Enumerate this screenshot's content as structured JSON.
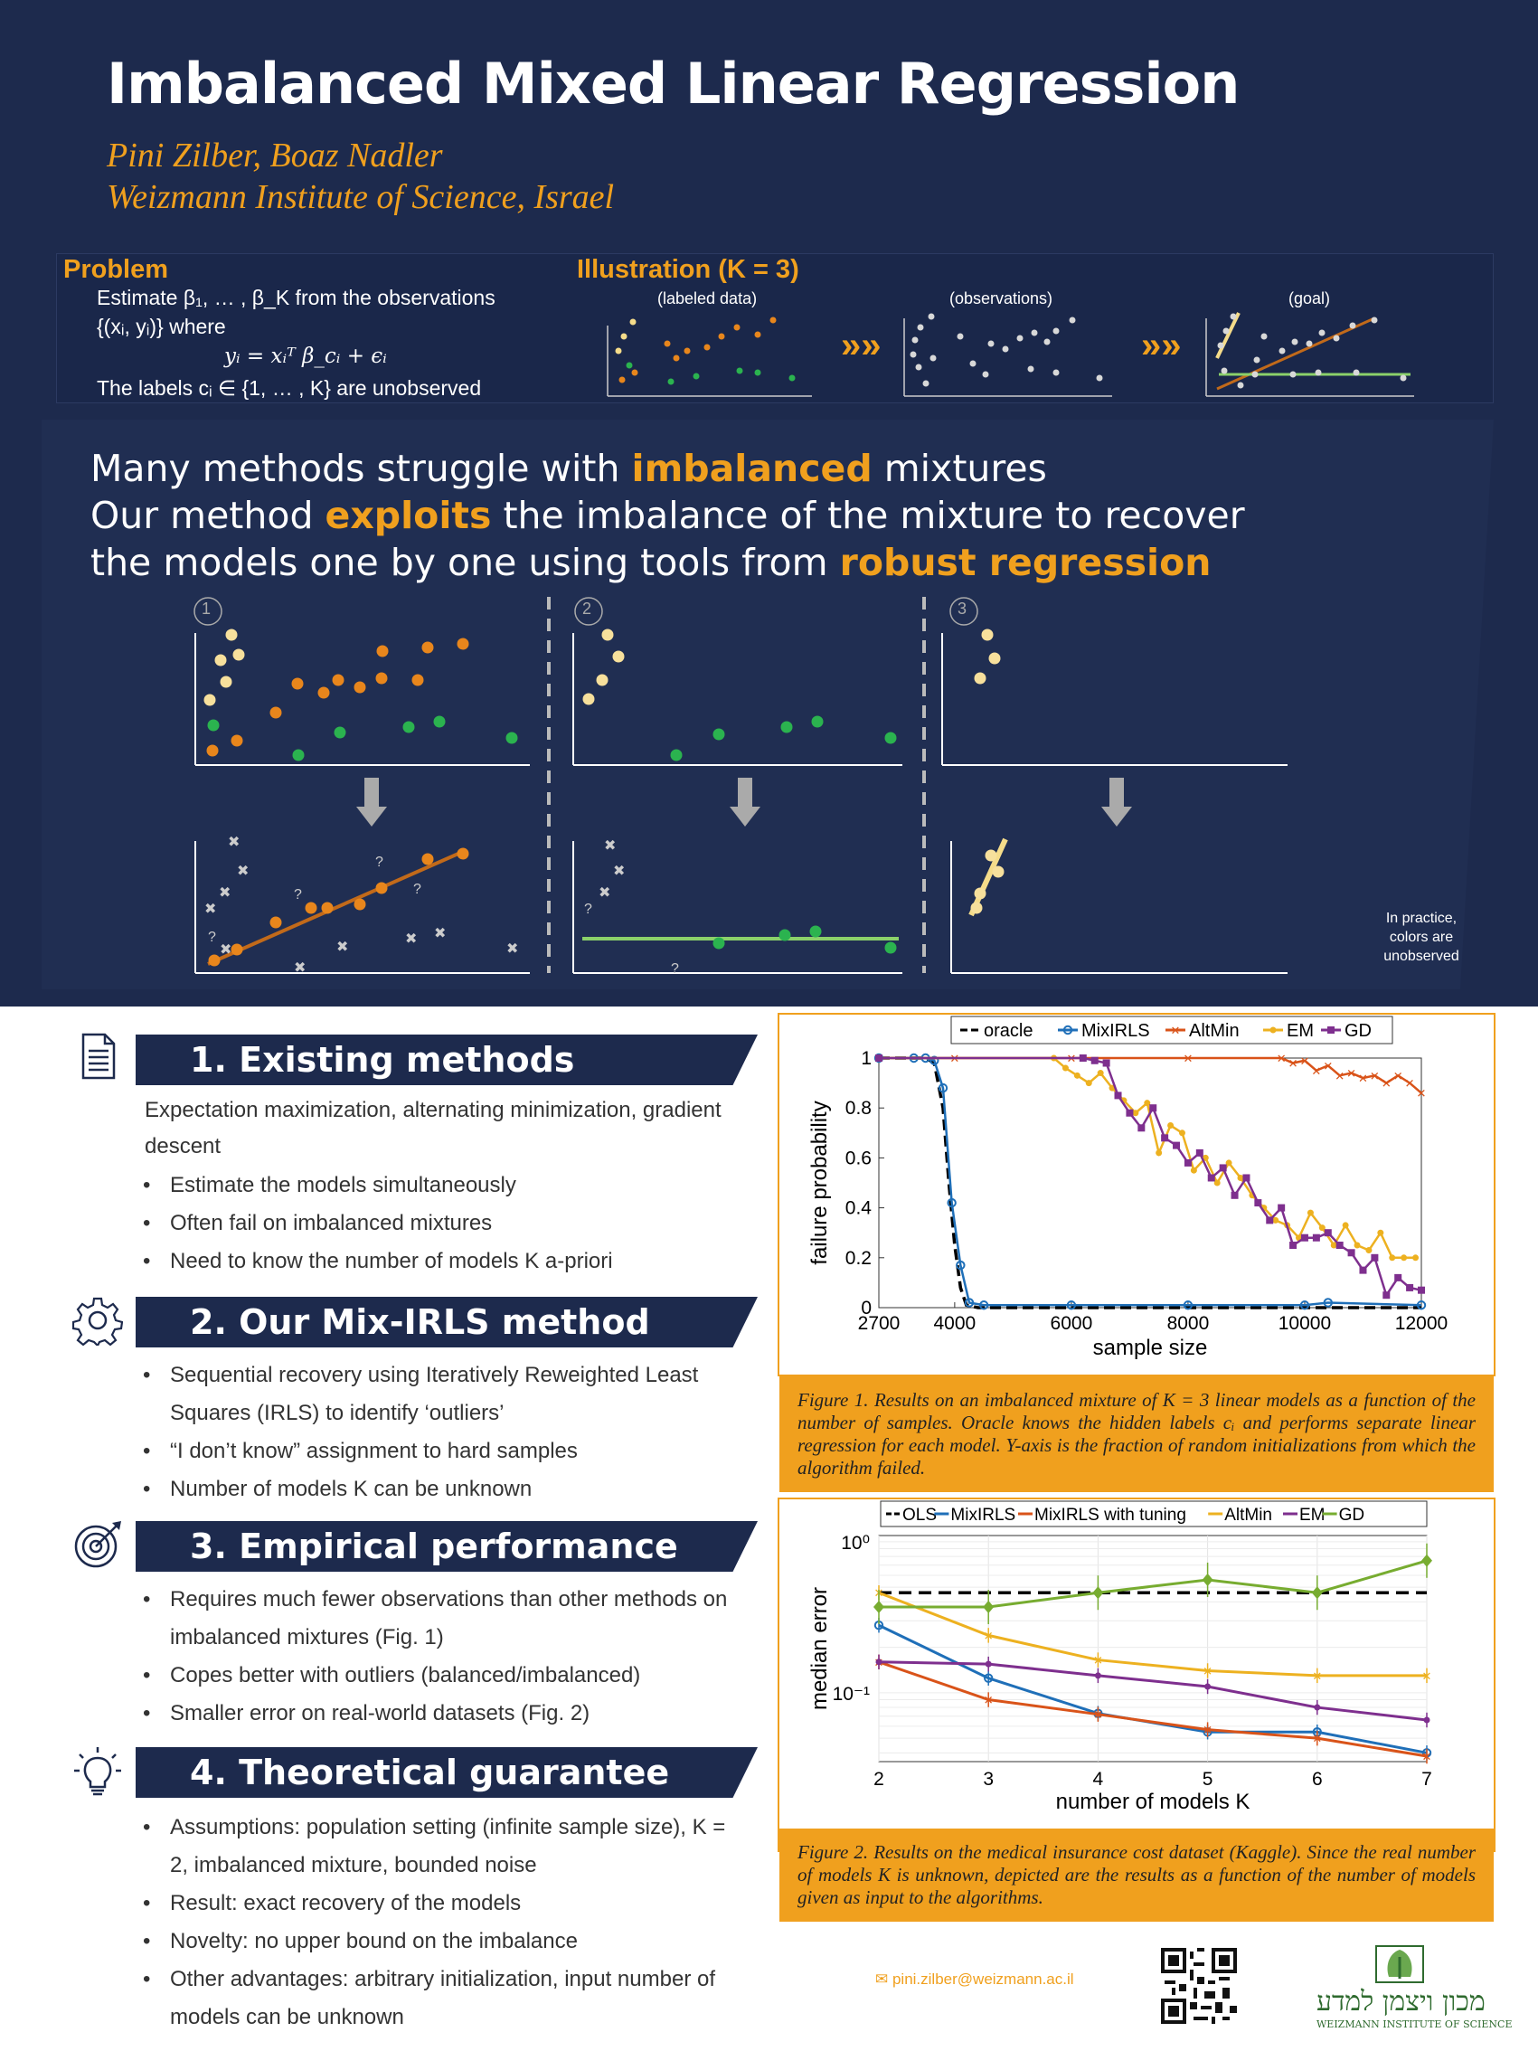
{
  "title": "Imbalanced Mixed Linear Regression",
  "authors": "Pini Zilber,  Boaz Nadler",
  "affiliation": "Weizmann Institute of Science, Israel",
  "problem": {
    "heading": "Problem",
    "line1": "Estimate β₁, … , β_K from the observations",
    "line2": "{(xᵢ, yᵢ)} where",
    "eq": "yᵢ = xᵢᵀ β_cᵢ + ϵᵢ",
    "line3": "The labels cᵢ ∈ {1, … , K}  are unobserved"
  },
  "illustration": {
    "heading": "Illustration (K = 3)",
    "labels": [
      "(labeled data)",
      "(observations)",
      "(goal)"
    ],
    "arrows": "»»"
  },
  "headline": {
    "l1a": "Many methods struggle with ",
    "l1b": "imbalanced",
    "l1c": " mixtures",
    "l2a": "Our method ",
    "l2b": "exploits",
    "l2c": " the imbalance of the mixture to recover",
    "l3a": "the models one by one using tools from ",
    "l3b": "robust regression"
  },
  "steps": [
    "1",
    "2",
    "3"
  ],
  "side_note": "In practice, colors are unobserved",
  "sections": [
    {
      "title": "1. Existing methods",
      "intro": "Expectation maximization, alternating minimization, gradient descent",
      "bullets": [
        "Estimate the models simultaneously",
        "Often fail on imbalanced mixtures",
        "Need to know the number of models K a-priori"
      ]
    },
    {
      "title": "2. Our Mix-IRLS method",
      "bullets": [
        "Sequential recovery using Iteratively Reweighted Least Squares (IRLS) to identify ‘outliers’",
        "“I don’t know” assignment to hard samples",
        "Number of models K can be unknown"
      ]
    },
    {
      "title": "3. Empirical performance",
      "bullets": [
        "Requires much fewer observations than other methods on imbalanced mixtures (Fig. 1)",
        "Copes better with outliers (balanced/imbalanced)",
        "Smaller error on real-world datasets (Fig. 2)"
      ]
    },
    {
      "title": "4. Theoretical guarantee",
      "bullets": [
        "Assumptions: population setting (infinite sample size), K = 2, imbalanced mixture, bounded noise",
        "Result: exact recovery of the models",
        "Novelty: no upper bound on the imbalance",
        "Other advantages: arbitrary initialization, input number of models can be unknown"
      ]
    }
  ],
  "fig1_caption": "Figure 1. Results on an imbalanced mixture of K = 3 linear models as a function of the number of samples. Oracle knows the hidden labels cᵢ and performs separate linear regression for each model. Y-axis is the fraction of random initializations from which the algorithm failed.",
  "fig2_caption": "Figure 2. Results on the medical insurance cost dataset (Kaggle). Since the real number of models K is unknown, depicted are the results as a function of the number of models given as input to the algorithms.",
  "email": "pini.zilber@weizmann.ac.il",
  "logo_hebrew": "מכון ויצמן למדע",
  "logo_english": "WEIZMANN INSTITUTE OF SCIENCE",
  "chart_data": [
    {
      "type": "line",
      "xlabel": "sample size",
      "ylabel": "failure probability",
      "xlim": [
        2700,
        12000
      ],
      "ylim": [
        0,
        1
      ],
      "xticks": [
        "2700",
        "4000",
        "6000",
        "8000",
        "10000",
        "12000"
      ],
      "yticks": [
        "0",
        "0.2",
        "0.4",
        "0.6",
        "0.8",
        "1"
      ],
      "legend": "top",
      "colors": {
        "oracle": "#000000",
        "MixIRLS": "#1f6fb8",
        "AltMin": "#d95319",
        "EM": "#edb120",
        "GD": "#7e2f8e"
      },
      "series": [
        {
          "name": "oracle",
          "x": [
            2700,
            3500,
            3650,
            3800,
            3900,
            4000,
            4100,
            4200,
            4400,
            12000
          ],
          "values": [
            1,
            1,
            0.98,
            0.8,
            0.5,
            0.25,
            0.08,
            0.01,
            0,
            0
          ]
        },
        {
          "name": "MixIRLS",
          "x": [
            2700,
            3300,
            3500,
            3650,
            3800,
            3950,
            4100,
            4250,
            4500,
            6000,
            8000,
            10000,
            10400,
            12000
          ],
          "values": [
            1,
            1,
            1,
            0.99,
            0.88,
            0.42,
            0.17,
            0.02,
            0.01,
            0.01,
            0.01,
            0.01,
            0.02,
            0.01
          ]
        },
        {
          "name": "AltMin",
          "x": [
            2700,
            4000,
            6000,
            8000,
            9600,
            9800,
            10000,
            10200,
            10400,
            10600,
            10800,
            11000,
            11200,
            11400,
            11600,
            11800,
            12000
          ],
          "values": [
            1,
            1,
            1,
            1,
            1,
            0.98,
            0.99,
            0.95,
            0.97,
            0.93,
            0.94,
            0.92,
            0.93,
            0.9,
            0.93,
            0.9,
            0.86
          ]
        },
        {
          "name": "EM",
          "x": [
            2700,
            5700,
            5900,
            6100,
            6300,
            6500,
            6700,
            6900,
            7100,
            7300,
            7500,
            7700,
            7900,
            8100,
            8300,
            8500,
            8700,
            8900,
            9100,
            9300,
            9500,
            9700,
            9900,
            10100,
            10300,
            10500,
            10700,
            10900,
            11100,
            11300,
            11500,
            11700,
            11900
          ],
          "values": [
            1,
            1,
            0.96,
            0.93,
            0.9,
            0.94,
            0.88,
            0.83,
            0.78,
            0.82,
            0.62,
            0.73,
            0.7,
            0.55,
            0.6,
            0.5,
            0.58,
            0.52,
            0.45,
            0.4,
            0.35,
            0.33,
            0.28,
            0.38,
            0.32,
            0.25,
            0.33,
            0.25,
            0.23,
            0.3,
            0.2,
            0.2,
            0.2
          ]
        },
        {
          "name": "GD",
          "x": [
            2700,
            6200,
            6400,
            6600,
            6800,
            7000,
            7200,
            7400,
            7600,
            7800,
            8000,
            8200,
            8400,
            8600,
            8800,
            9000,
            9200,
            9400,
            9600,
            9800,
            10000,
            10200,
            10400,
            10600,
            10800,
            11000,
            11200,
            11400,
            11600,
            11800,
            12000
          ],
          "values": [
            1,
            1,
            0.99,
            0.98,
            0.85,
            0.78,
            0.72,
            0.8,
            0.68,
            0.65,
            0.58,
            0.62,
            0.52,
            0.56,
            0.45,
            0.52,
            0.42,
            0.35,
            0.4,
            0.25,
            0.28,
            0.28,
            0.3,
            0.25,
            0.22,
            0.15,
            0.2,
            0.05,
            0.12,
            0.08,
            0.07
          ]
        }
      ]
    },
    {
      "type": "line",
      "xlabel": "number of models K",
      "ylabel": "median error",
      "xlim": [
        2,
        7
      ],
      "ylim": [
        0.035,
        1.1
      ],
      "log_y": true,
      "xticks": [
        "2",
        "3",
        "4",
        "5",
        "6",
        "7"
      ],
      "yticks": [
        "10⁰",
        "10⁻¹"
      ],
      "grid": true,
      "legend": "top",
      "colors": {
        "OLS": "#000000",
        "MixIRLS": "#1f6fb8",
        "MixIRLS with tuning": "#d95319",
        "AltMin": "#edb120",
        "EM": "#7e2f8e",
        "GD": "#77ac30"
      },
      "categories": [
        2,
        3,
        4,
        5,
        6,
        7
      ],
      "series": [
        {
          "name": "OLS",
          "values": [
            0.46,
            0.46,
            0.46,
            0.46,
            0.46,
            0.46
          ]
        },
        {
          "name": "MixIRLS",
          "values": [
            0.28,
            0.125,
            0.073,
            0.055,
            0.055,
            0.04
          ]
        },
        {
          "name": "MixIRLS with tuning",
          "values": [
            0.16,
            0.09,
            0.072,
            0.057,
            0.05,
            0.038
          ]
        },
        {
          "name": "AltMin",
          "values": [
            0.46,
            0.24,
            0.165,
            0.14,
            0.13,
            0.13
          ]
        },
        {
          "name": "EM",
          "values": [
            0.16,
            0.155,
            0.13,
            0.11,
            0.08,
            0.066
          ]
        },
        {
          "name": "GD",
          "values": [
            0.37,
            0.37,
            0.46,
            0.56,
            0.46,
            0.75
          ]
        }
      ]
    }
  ]
}
